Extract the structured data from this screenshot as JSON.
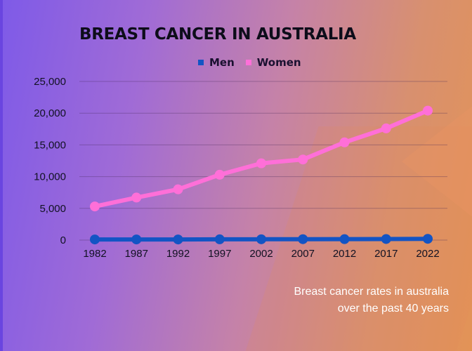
{
  "chart_data": {
    "type": "line",
    "title": "BREAST CANCER IN AUSTRALIA",
    "caption_line1": "Breast cancer rates in australia",
    "caption_line2": "over the past 40 years",
    "categories": [
      "1982",
      "1987",
      "1992",
      "1997",
      "2002",
      "2007",
      "2012",
      "2017",
      "2022"
    ],
    "series": [
      {
        "name": "Men",
        "color": "#1354c4",
        "values": [
          100,
          100,
          100,
          120,
          130,
          140,
          150,
          170,
          200
        ]
      },
      {
        "name": "Women",
        "color": "#ff6fd8",
        "values": [
          5300,
          6700,
          8000,
          10300,
          12100,
          12700,
          15400,
          17600,
          20400
        ]
      }
    ],
    "ylim": [
      0,
      25000
    ],
    "yticks": [
      "0",
      "5,000",
      "10,000",
      "15,000",
      "20,000",
      "25,000"
    ],
    "ytick_values": [
      0,
      5000,
      10000,
      15000,
      20000,
      25000
    ],
    "grid": true,
    "legend_position": "top"
  }
}
